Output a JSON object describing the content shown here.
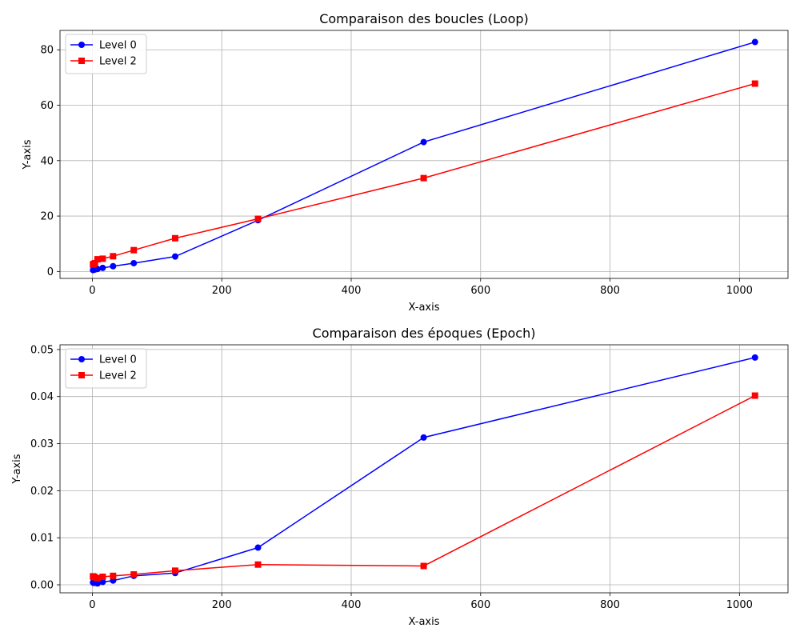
{
  "chart_data": [
    {
      "type": "line",
      "title": "Comparaison des boucles (Loop)",
      "xlabel": "X-axis",
      "ylabel": "Y-axis",
      "xlim": [
        -50,
        1075
      ],
      "ylim": [
        -2.5,
        87
      ],
      "xticks": [
        0,
        200,
        400,
        600,
        800,
        1000
      ],
      "yticks": [
        0,
        20,
        40,
        60,
        80
      ],
      "xtick_labels": [
        "0",
        "200",
        "400",
        "600",
        "800",
        "1000"
      ],
      "ytick_labels": [
        "0",
        "20",
        "40",
        "60",
        "80"
      ],
      "grid": true,
      "legend_position": "top-left",
      "series": [
        {
          "name": "Level 0",
          "color": "#0000ff",
          "marker": "circle",
          "x": [
            1,
            2,
            4,
            8,
            16,
            32,
            64,
            128,
            256,
            512,
            1024
          ],
          "y": [
            0.5,
            0.6,
            0.7,
            0.9,
            1.3,
            1.9,
            3.0,
            5.4,
            18.5,
            46.7,
            82.8
          ]
        },
        {
          "name": "Level 2",
          "color": "#ff0000",
          "marker": "square",
          "x": [
            1,
            2,
            4,
            8,
            16,
            32,
            64,
            128,
            256,
            512,
            1024
          ],
          "y": [
            2.5,
            2.7,
            3.0,
            4.4,
            4.6,
            5.5,
            7.7,
            12.0,
            19.0,
            33.7,
            67.8
          ]
        }
      ]
    },
    {
      "type": "line",
      "title": "Comparaison des époques (Epoch)",
      "xlabel": "X-axis",
      "ylabel": "Y-axis",
      "xlim": [
        -50,
        1075
      ],
      "ylim": [
        -0.0017,
        0.051
      ],
      "xticks": [
        0,
        200,
        400,
        600,
        800,
        1000
      ],
      "yticks": [
        0,
        0.01,
        0.02,
        0.03,
        0.04,
        0.05
      ],
      "xtick_labels": [
        "0",
        "200",
        "400",
        "600",
        "800",
        "1000"
      ],
      "ytick_labels": [
        "0.00",
        "0.01",
        "0.02",
        "0.03",
        "0.04",
        "0.05"
      ],
      "grid": true,
      "legend_position": "top-left",
      "series": [
        {
          "name": "Level 0",
          "color": "#0000ff",
          "marker": "circle",
          "x": [
            1,
            2,
            4,
            8,
            16,
            32,
            64,
            128,
            256,
            512,
            1024
          ],
          "y": [
            0.0005,
            0.0004,
            0.0004,
            0.0003,
            0.0006,
            0.0009,
            0.0019,
            0.0025,
            0.0079,
            0.0313,
            0.0483
          ]
        },
        {
          "name": "Level 2",
          "color": "#ff0000",
          "marker": "square",
          "x": [
            1,
            2,
            4,
            8,
            16,
            32,
            64,
            128,
            256,
            512,
            1024
          ],
          "y": [
            0.0018,
            0.0017,
            0.0016,
            0.0014,
            0.0017,
            0.0019,
            0.0022,
            0.003,
            0.0043,
            0.004,
            0.0402
          ]
        }
      ]
    }
  ]
}
